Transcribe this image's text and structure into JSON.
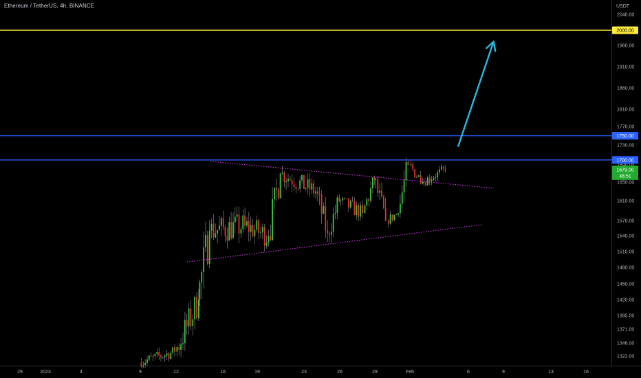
{
  "header": {
    "symbol": "Ethereum / TetherUS",
    "interval": "4h",
    "exchange": "BINANCE"
  },
  "axis": {
    "unit": "USDT"
  },
  "price_badges": [
    {
      "label": "2000.00",
      "bg": "#ffeb3b",
      "fg": "#000000"
    },
    {
      "label": "1750.00",
      "bg": "#2962ff",
      "fg": "#ffffff"
    },
    {
      "label": "1700.00",
      "bg": "#2962ff",
      "fg": "#ffffff"
    }
  ],
  "last_price": {
    "value": "1679.00",
    "countdown": "48:51",
    "bg": "#22ab2e",
    "fg": "#ffffff"
  },
  "colors": {
    "up": "#26a69a",
    "up_candle": "#35c93e",
    "down": "#e8322d",
    "wick": "#9a9a9a",
    "h_yellow": "#ffeb3b",
    "h_blue": "#2962ff",
    "trendline": "#e040fb",
    "arrow": "#29b6d8",
    "axis_text": "#b2b5be",
    "background": "#000000"
  },
  "chart_data": {
    "type": "candlestick",
    "title": "Ethereum / TetherUS, 4h, BINANCE",
    "xlabel": "",
    "ylabel": "USDT",
    "y_ticks": [
      1322,
      1346,
      1371,
      1395,
      1420,
      1450,
      1480,
      1510,
      1540,
      1570,
      1610,
      1650,
      1690,
      1730,
      1770,
      1810,
      1860,
      1910,
      1960,
      2040
    ],
    "x_ticks": [
      "29",
      "2023",
      "4",
      "9",
      "12",
      "16",
      "19",
      "23",
      "26",
      "29",
      "Feb",
      "6",
      "9",
      "13",
      "16"
    ],
    "horizontal_lines": [
      2000,
      1750,
      1700
    ],
    "triangle_upper": {
      "from": {
        "date": "Jan 15",
        "price": 1697
      },
      "to": {
        "date": "Feb 8",
        "price": 1637
      }
    },
    "triangle_lower": {
      "from": {
        "date": "Jan 13",
        "price": 1490
      },
      "to": {
        "date": "Feb 7",
        "price": 1562
      }
    },
    "arrow": {
      "from": {
        "date": "Feb 5",
        "price": 1728
      },
      "to": {
        "date": "Feb 8",
        "price": 1970
      }
    },
    "segments": [
      {
        "from": "Jan 9",
        "to": "Jan 12",
        "open": 1310,
        "close": 1330,
        "low": 1300,
        "high": 1350
      },
      {
        "from": "Jan 12",
        "to": "Jan 14",
        "open": 1330,
        "close": 1420,
        "low": 1320,
        "high": 1440
      },
      {
        "from": "Jan 14",
        "to": "Jan 15",
        "open": 1420,
        "close": 1550,
        "low": 1410,
        "high": 1600
      },
      {
        "from": "Jan 15",
        "to": "Jan 18",
        "open": 1550,
        "close": 1560,
        "low": 1500,
        "high": 1620
      },
      {
        "from": "Jan 18",
        "to": "Jan 20",
        "open": 1560,
        "close": 1540,
        "low": 1505,
        "high": 1610
      },
      {
        "from": "Jan 20",
        "to": "Jan 21",
        "open": 1540,
        "close": 1670,
        "low": 1530,
        "high": 1690
      },
      {
        "from": "Jan 21",
        "to": "Jan 24",
        "open": 1670,
        "close": 1630,
        "low": 1595,
        "high": 1690
      },
      {
        "from": "Jan 24",
        "to": "Jan 25",
        "open": 1630,
        "close": 1545,
        "low": 1520,
        "high": 1640
      },
      {
        "from": "Jan 25",
        "to": "Jan 26",
        "open": 1545,
        "close": 1610,
        "low": 1525,
        "high": 1630
      },
      {
        "from": "Jan 26",
        "to": "Jan 28",
        "open": 1610,
        "close": 1585,
        "low": 1560,
        "high": 1630
      },
      {
        "from": "Jan 28",
        "to": "Jan 29",
        "open": 1585,
        "close": 1655,
        "low": 1570,
        "high": 1665
      },
      {
        "from": "Jan 29",
        "to": "Jan 30",
        "open": 1655,
        "close": 1570,
        "low": 1550,
        "high": 1665
      },
      {
        "from": "Jan 30",
        "to": "Jan 31",
        "open": 1570,
        "close": 1585,
        "low": 1555,
        "high": 1600
      },
      {
        "from": "Jan 31",
        "to": "Feb 1",
        "open": 1585,
        "close": 1690,
        "low": 1575,
        "high": 1705
      },
      {
        "from": "Feb 1",
        "to": "Feb 2",
        "open": 1690,
        "close": 1650,
        "low": 1645,
        "high": 1715
      },
      {
        "from": "Feb 2",
        "to": "Feb 4",
        "open": 1650,
        "close": 1679,
        "low": 1640,
        "high": 1695
      }
    ]
  }
}
